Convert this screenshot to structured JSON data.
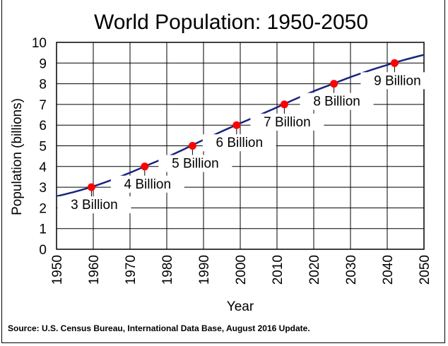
{
  "chart_data": {
    "type": "line",
    "title": "World Population: 1950-2050",
    "xlabel": "Year",
    "ylabel": "Population  (billions)",
    "xlim": [
      1950,
      2050
    ],
    "ylim": [
      0,
      10
    ],
    "x_ticks": [
      1950,
      1960,
      1970,
      1980,
      1990,
      2000,
      2010,
      2020,
      2030,
      2040,
      2050
    ],
    "y_ticks": [
      0,
      1,
      2,
      3,
      4,
      5,
      6,
      7,
      8,
      9,
      10
    ],
    "grid": true,
    "line_color": "#1a237e",
    "marker_color": "#ff0000",
    "series": [
      {
        "x": [
          1950,
          1955,
          1960,
          1965,
          1970,
          1975,
          1980,
          1985,
          1990,
          1995,
          2000,
          2005,
          2010,
          2015,
          2020,
          2025,
          2030,
          2035,
          2040,
          2045,
          2050
        ],
        "values": [
          2.56,
          2.78,
          3.04,
          3.35,
          3.7,
          4.08,
          4.45,
          4.86,
          5.29,
          5.7,
          6.09,
          6.47,
          6.86,
          7.26,
          7.64,
          7.98,
          8.32,
          8.63,
          8.91,
          9.17,
          9.4
        ]
      }
    ],
    "milestones": [
      {
        "year": 1959.5,
        "value": 3,
        "label": "3 Billion"
      },
      {
        "year": 1974,
        "value": 4,
        "label": "4 Billion"
      },
      {
        "year": 1987,
        "value": 5,
        "label": "5 Billion"
      },
      {
        "year": 1999,
        "value": 6,
        "label": "6 Billion"
      },
      {
        "year": 2012,
        "value": 7,
        "label": "7 Billion"
      },
      {
        "year": 2025.5,
        "value": 8,
        "label": "8 Billion"
      },
      {
        "year": 2042,
        "value": 9,
        "label": "9 Billion"
      }
    ]
  },
  "source": "Source: U.S. Census Bureau, International Data Base, August 2016 Update."
}
